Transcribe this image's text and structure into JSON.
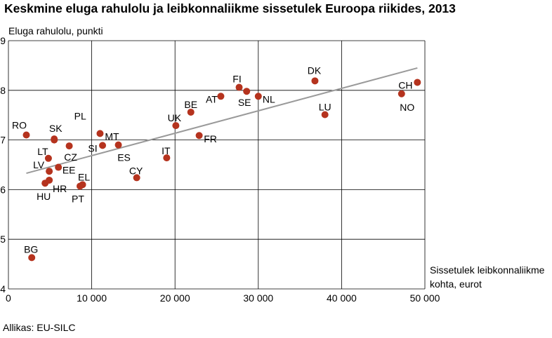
{
  "chart_data": {
    "type": "scatter",
    "title": "Keskmine eluga rahulolu ja leibkonnaliikme sissetulek Euroopa riikides, 2013",
    "ylabel": "Eluga rahulolu, punkti",
    "xlabel": [
      "Sissetulek leibkonnaliikme",
      "kohta, eurot"
    ],
    "xlim": [
      0,
      50000
    ],
    "ylim": [
      4,
      9
    ],
    "xticks": [
      "0",
      "10 000",
      "20 000",
      "30 000",
      "40 000",
      "50 000"
    ],
    "yticks": [
      "4",
      "5",
      "6",
      "7",
      "8",
      "9"
    ],
    "grid": true,
    "points": [
      {
        "label": "RO",
        "x": 2150,
        "y": 7.1
      },
      {
        "label": "PL",
        "x": 5500,
        "y": 7.0
      },
      {
        "label": "SK",
        "x": 5500,
        "y": 7.02
      },
      {
        "label": "LT",
        "x": 4800,
        "y": 6.63
      },
      {
        "label": "CZ",
        "x": 7300,
        "y": 6.88
      },
      {
        "label": "LV",
        "x": 4900,
        "y": 6.37
      },
      {
        "label": "EE",
        "x": 6000,
        "y": 6.45
      },
      {
        "label": "HR",
        "x": 4900,
        "y": 6.19
      },
      {
        "label": "HU",
        "x": 4400,
        "y": 6.13
      },
      {
        "label": "EL",
        "x": 8900,
        "y": 6.1
      },
      {
        "label": "PT",
        "x": 8600,
        "y": 6.07
      },
      {
        "label": "BG",
        "x": 2800,
        "y": 4.63
      },
      {
        "label": "MT",
        "x": 11000,
        "y": 7.13
      },
      {
        "label": "SI",
        "x": 11300,
        "y": 6.89
      },
      {
        "label": "ES",
        "x": 13200,
        "y": 6.9
      },
      {
        "label": "CY",
        "x": 15400,
        "y": 6.24
      },
      {
        "label": "IT",
        "x": 19000,
        "y": 6.64
      },
      {
        "label": "UK",
        "x": 20100,
        "y": 7.29
      },
      {
        "label": "BE",
        "x": 21900,
        "y": 7.56
      },
      {
        "label": "FR",
        "x": 22900,
        "y": 7.09
      },
      {
        "label": "AT",
        "x": 25500,
        "y": 7.88
      },
      {
        "label": "FI",
        "x": 27700,
        "y": 8.06
      },
      {
        "label": "SE",
        "x": 28600,
        "y": 7.98
      },
      {
        "label": "NL",
        "x": 30000,
        "y": 7.88
      },
      {
        "label": "DK",
        "x": 36800,
        "y": 8.19
      },
      {
        "label": "LU",
        "x": 38000,
        "y": 7.51
      },
      {
        "label": "NO",
        "x": 47200,
        "y": 7.93
      },
      {
        "label": "CH",
        "x": 49100,
        "y": 8.16
      }
    ],
    "trendline": {
      "x": [
        2150,
        49100
      ],
      "y": [
        6.33,
        8.45
      ]
    },
    "colors": {
      "point": "#b5331e",
      "trend": "#9a9a9a",
      "grid": "#000000"
    }
  },
  "source": "Allikas: EU-SILC"
}
